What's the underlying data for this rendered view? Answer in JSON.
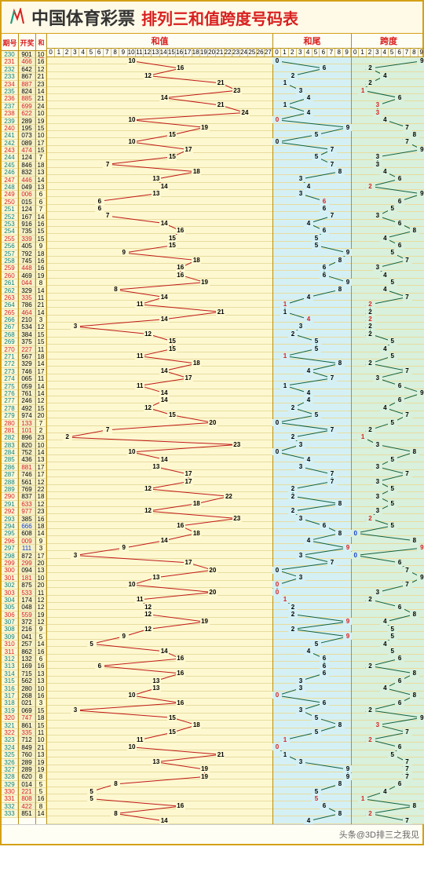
{
  "header": {
    "title": "中国体育彩票",
    "subtitle": "排列三和值跨度号码表"
  },
  "cols": {
    "issue": "期号",
    "num": "开奖号",
    "sum": "和值",
    "hz": "和值",
    "hw": "和尾",
    "kd": "跨度"
  },
  "hz_scale": 28,
  "hw_scale": 10,
  "kd_scale": 10,
  "style": {
    "line_hz": "#c01818",
    "line_hw": "#106040",
    "line_kd": "#106040",
    "red": "#d82020",
    "teal": "#0a8080",
    "blue": "#1040d0",
    "black": "#222",
    "bg_hz": "#fdf8d0",
    "bg_hw": "#d4f0f4",
    "bg_kd": "#d8f0dc",
    "row_h": 9.4
  },
  "rows": [
    {
      "i": "230",
      "n": "901",
      "s": 10,
      "hw": 0,
      "kd": 9,
      "ic": "t"
    },
    {
      "i": "231",
      "n": "466",
      "s": 16,
      "hw": 6,
      "kd": 2,
      "ic": "r",
      "nc": "r"
    },
    {
      "i": "232",
      "n": "642",
      "s": 12,
      "hw": 2,
      "kd": 4,
      "ic": "t"
    },
    {
      "i": "233",
      "n": "867",
      "s": 21,
      "hw": 1,
      "kd": 2,
      "ic": "t"
    },
    {
      "i": "234",
      "n": "887",
      "s": 23,
      "hw": 3,
      "kd": 1,
      "ic": "r",
      "nc": "r",
      "kc": "r"
    },
    {
      "i": "235",
      "n": "824",
      "s": 14,
      "hw": 4,
      "kd": 6,
      "ic": "t"
    },
    {
      "i": "236",
      "n": "885",
      "s": 21,
      "hw": 1,
      "kd": 3,
      "ic": "r",
      "nc": "r",
      "kc": "r"
    },
    {
      "i": "237",
      "n": "699",
      "s": 24,
      "hw": 4,
      "kd": 3,
      "ic": "t",
      "nc": "r",
      "kc": "r"
    },
    {
      "i": "238",
      "n": "622",
      "s": 10,
      "hw": 0,
      "kd": 4,
      "ic": "r",
      "nc": "r",
      "hwc": "r"
    },
    {
      "i": "239",
      "n": "289",
      "s": 19,
      "hw": 9,
      "kd": 7,
      "ic": "t"
    },
    {
      "i": "240",
      "n": "195",
      "s": 15,
      "hw": 5,
      "kd": 8,
      "ic": "r"
    },
    {
      "i": "241",
      "n": "073",
      "s": 10,
      "hw": 0,
      "kd": 7,
      "ic": "t"
    },
    {
      "i": "242",
      "n": "089",
      "s": 17,
      "hw": 7,
      "kd": 9,
      "ic": "t"
    },
    {
      "i": "243",
      "n": "474",
      "s": 15,
      "hw": 5,
      "kd": 3,
      "ic": "r",
      "nc": "r"
    },
    {
      "i": "244",
      "n": "124",
      "s": 7,
      "hw": 7,
      "kd": 3,
      "ic": "t"
    },
    {
      "i": "245",
      "n": "846",
      "s": 18,
      "hw": 8,
      "kd": 4,
      "ic": "t"
    },
    {
      "i": "246",
      "n": "832",
      "s": 13,
      "hw": 3,
      "kd": 6,
      "ic": "t"
    },
    {
      "i": "247",
      "n": "446",
      "s": 14,
      "hw": 4,
      "kd": 2,
      "ic": "r",
      "nc": "r",
      "kc": "r"
    },
    {
      "i": "248",
      "n": "049",
      "s": 13,
      "hw": 3,
      "kd": 9,
      "ic": "t"
    },
    {
      "i": "249",
      "n": "006",
      "s": 6,
      "hw": 6,
      "kd": 6,
      "ic": "r",
      "nc": "r",
      "hwc": "r"
    },
    {
      "i": "250",
      "n": "015",
      "s": 6,
      "hw": 6,
      "kd": 5,
      "ic": "r"
    },
    {
      "i": "251",
      "n": "124",
      "s": 7,
      "hw": 7,
      "kd": 3,
      "ic": "t"
    },
    {
      "i": "252",
      "n": "167",
      "s": 14,
      "hw": 4,
      "kd": 6,
      "ic": "t"
    },
    {
      "i": "253",
      "n": "916",
      "s": 16,
      "hw": 6,
      "kd": 8,
      "ic": "t"
    },
    {
      "i": "254",
      "n": "735",
      "s": 15,
      "hw": 5,
      "kd": 4,
      "ic": "t"
    },
    {
      "i": "255",
      "n": "339",
      "s": 15,
      "hw": 5,
      "kd": 6,
      "ic": "r",
      "nc": "r"
    },
    {
      "i": "256",
      "n": "405",
      "s": 9,
      "hw": 9,
      "kd": 5,
      "ic": "t"
    },
    {
      "i": "257",
      "n": "792",
      "s": 18,
      "hw": 8,
      "kd": 7,
      "ic": "t"
    },
    {
      "i": "258",
      "n": "745",
      "s": 16,
      "hw": 6,
      "kd": 3,
      "ic": "t"
    },
    {
      "i": "259",
      "n": "448",
      "s": 16,
      "hw": 6,
      "kd": 4,
      "ic": "r",
      "nc": "r"
    },
    {
      "i": "260",
      "n": "469",
      "s": 19,
      "hw": 9,
      "kd": 5,
      "ic": "r"
    },
    {
      "i": "261",
      "n": "044",
      "s": 8,
      "hw": 8,
      "kd": 4,
      "ic": "t",
      "nc": "r"
    },
    {
      "i": "262",
      "n": "329",
      "s": 14,
      "hw": 4,
      "kd": 7,
      "ic": "t"
    },
    {
      "i": "263",
      "n": "335",
      "s": 11,
      "hw": 1,
      "kd": 2,
      "ic": "r",
      "nc": "r",
      "hwc": "r",
      "kc": "r"
    },
    {
      "i": "264",
      "n": "786",
      "s": 21,
      "hw": 1,
      "kd": 2,
      "ic": "t"
    },
    {
      "i": "265",
      "n": "464",
      "s": 14,
      "hw": 4,
      "kd": 2,
      "ic": "r",
      "nc": "r",
      "hwc": "r",
      "kc": "r"
    },
    {
      "i": "266",
      "n": "210",
      "s": 3,
      "hw": 3,
      "kd": 2,
      "ic": "t"
    },
    {
      "i": "267",
      "n": "534",
      "s": 12,
      "hw": 2,
      "kd": 2,
      "ic": "t"
    },
    {
      "i": "268",
      "n": "384",
      "s": 15,
      "hw": 5,
      "kd": 5,
      "ic": "t"
    },
    {
      "i": "269",
      "n": "375",
      "s": 15,
      "hw": 5,
      "kd": 4,
      "ic": "t"
    },
    {
      "i": "270",
      "n": "227",
      "s": 11,
      "hw": 1,
      "kd": 5,
      "ic": "r",
      "nc": "r",
      "hwc": "r"
    },
    {
      "i": "271",
      "n": "567",
      "s": 18,
      "hw": 8,
      "kd": 2,
      "ic": "t"
    },
    {
      "i": "272",
      "n": "329",
      "s": 14,
      "hw": 4,
      "kd": 7,
      "ic": "t"
    },
    {
      "i": "273",
      "n": "746",
      "s": 17,
      "hw": 7,
      "kd": 3,
      "ic": "t"
    },
    {
      "i": "274",
      "n": "065",
      "s": 11,
      "hw": 1,
      "kd": 6,
      "ic": "t"
    },
    {
      "i": "275",
      "n": "059",
      "s": 14,
      "hw": 4,
      "kd": 9,
      "ic": "t"
    },
    {
      "i": "276",
      "n": "761",
      "s": 14,
      "hw": 4,
      "kd": 6,
      "ic": "t"
    },
    {
      "i": "277",
      "n": "246",
      "s": 12,
      "hw": 2,
      "kd": 4,
      "ic": "t"
    },
    {
      "i": "278",
      "n": "492",
      "s": 15,
      "hw": 5,
      "kd": 7,
      "ic": "t"
    },
    {
      "i": "279",
      "n": "974",
      "s": 20,
      "hw": 0,
      "kd": 5,
      "ic": "t"
    },
    {
      "i": "280",
      "n": "133",
      "s": 7,
      "hw": 7,
      "kd": 2,
      "ic": "r",
      "nc": "r"
    },
    {
      "i": "281",
      "n": "101",
      "s": 2,
      "hw": 2,
      "kd": 1,
      "ic": "r",
      "nc": "r",
      "kc": "r"
    },
    {
      "i": "282",
      "n": "896",
      "s": 23,
      "hw": 3,
      "kd": 3,
      "ic": "t"
    },
    {
      "i": "283",
      "n": "820",
      "s": 10,
      "hw": 0,
      "kd": 8,
      "ic": "t"
    },
    {
      "i": "284",
      "n": "752",
      "s": 14,
      "hw": 4,
      "kd": 5,
      "ic": "t"
    },
    {
      "i": "285",
      "n": "436",
      "s": 13,
      "hw": 3,
      "kd": 3,
      "ic": "t"
    },
    {
      "i": "286",
      "n": "881",
      "s": 17,
      "hw": 7,
      "kd": 7,
      "ic": "t",
      "nc": "r"
    },
    {
      "i": "287",
      "n": "746",
      "s": 17,
      "hw": 7,
      "kd": 3,
      "ic": "t"
    },
    {
      "i": "288",
      "n": "561",
      "s": 12,
      "hw": 2,
      "kd": 5,
      "ic": "t"
    },
    {
      "i": "289",
      "n": "769",
      "s": 22,
      "hw": 2,
      "kd": 3,
      "ic": "t"
    },
    {
      "i": "290",
      "n": "837",
      "s": 18,
      "hw": 8,
      "kd": 5,
      "ic": "r"
    },
    {
      "i": "291",
      "n": "633",
      "s": 12,
      "hw": 2,
      "kd": 3,
      "ic": "t",
      "nc": "r"
    },
    {
      "i": "292",
      "n": "977",
      "s": 23,
      "hw": 3,
      "kd": 2,
      "ic": "r",
      "nc": "r",
      "kc": "r"
    },
    {
      "i": "293",
      "n": "385",
      "s": 16,
      "hw": 6,
      "kd": 5,
      "ic": "t"
    },
    {
      "i": "294",
      "n": "666",
      "s": 18,
      "hw": 8,
      "kd": 0,
      "ic": "t",
      "nc": "b",
      "kc": "b"
    },
    {
      "i": "295",
      "n": "608",
      "s": 14,
      "hw": 4,
      "kd": 8,
      "ic": "t"
    },
    {
      "i": "296",
      "n": "009",
      "s": 9,
      "hw": 9,
      "kd": 9,
      "ic": "r",
      "nc": "r",
      "hwc": "r",
      "kc": "r"
    },
    {
      "i": "297",
      "n": "111",
      "s": 3,
      "hw": 3,
      "kd": 0,
      "ic": "t",
      "nc": "b",
      "kc": "b"
    },
    {
      "i": "298",
      "n": "872",
      "s": 17,
      "hw": 7,
      "kd": 6,
      "ic": "t"
    },
    {
      "i": "299",
      "n": "299",
      "s": 20,
      "hw": 0,
      "kd": 7,
      "ic": "r",
      "nc": "r"
    },
    {
      "i": "300",
      "n": "094",
      "s": 13,
      "hw": 3,
      "kd": 9,
      "ic": "r"
    },
    {
      "i": "301",
      "n": "181",
      "s": 10,
      "hw": 0,
      "kd": 7,
      "ic": "r",
      "nc": "r",
      "hwc": "r"
    },
    {
      "i": "302",
      "n": "875",
      "s": 20,
      "hw": 0,
      "kd": 3,
      "ic": "t",
      "hwc": "r"
    },
    {
      "i": "303",
      "n": "533",
      "s": 11,
      "hw": 1,
      "kd": 2,
      "ic": "r",
      "nc": "r",
      "hwc": "r"
    },
    {
      "i": "304",
      "n": "174",
      "s": 12,
      "hw": 2,
      "kd": 6,
      "ic": "t"
    },
    {
      "i": "305",
      "n": "048",
      "s": 12,
      "hw": 2,
      "kd": 8,
      "ic": "t"
    },
    {
      "i": "306",
      "n": "559",
      "s": 19,
      "hw": 9,
      "kd": 4,
      "ic": "r",
      "nc": "r",
      "hwc": "r"
    },
    {
      "i": "307",
      "n": "372",
      "s": 12,
      "hw": 2,
      "kd": 5,
      "ic": "t"
    },
    {
      "i": "308",
      "n": "216",
      "s": 9,
      "hw": 9,
      "kd": 5,
      "ic": "t",
      "hwc": "r"
    },
    {
      "i": "309",
      "n": "041",
      "s": 5,
      "hw": 5,
      "kd": 4,
      "ic": "t"
    },
    {
      "i": "310",
      "n": "257",
      "s": 14,
      "hw": 4,
      "kd": 5,
      "ic": "r"
    },
    {
      "i": "311",
      "n": "862",
      "s": 16,
      "hw": 6,
      "kd": 6,
      "ic": "r"
    },
    {
      "i": "312",
      "n": "132",
      "s": 6,
      "hw": 6,
      "kd": 2,
      "ic": "t"
    },
    {
      "i": "313",
      "n": "169",
      "s": 16,
      "hw": 6,
      "kd": 8,
      "ic": "t"
    },
    {
      "i": "314",
      "n": "715",
      "s": 13,
      "hw": 3,
      "kd": 6,
      "ic": "t"
    },
    {
      "i": "315",
      "n": "562",
      "s": 13,
      "hw": 3,
      "kd": 4,
      "ic": "t"
    },
    {
      "i": "316",
      "n": "280",
      "s": 10,
      "hw": 0,
      "kd": 8,
      "ic": "t",
      "hwc": "r"
    },
    {
      "i": "317",
      "n": "268",
      "s": 16,
      "hw": 6,
      "kd": 6,
      "ic": "t"
    },
    {
      "i": "318",
      "n": "021",
      "s": 3,
      "hw": 3,
      "kd": 2,
      "ic": "t"
    },
    {
      "i": "319",
      "n": "069",
      "s": 15,
      "hw": 5,
      "kd": 9,
      "ic": "t"
    },
    {
      "i": "320",
      "n": "747",
      "s": 18,
      "hw": 8,
      "kd": 3,
      "ic": "r",
      "nc": "r",
      "kc": "r"
    },
    {
      "i": "321",
      "n": "861",
      "s": 15,
      "hw": 5,
      "kd": 7,
      "ic": "t"
    },
    {
      "i": "322",
      "n": "335",
      "s": 11,
      "hw": 1,
      "kd": 2,
      "ic": "r",
      "nc": "r",
      "hwc": "r",
      "kc": "r"
    },
    {
      "i": "323",
      "n": "712",
      "s": 10,
      "hw": 0,
      "kd": 6,
      "ic": "t",
      "hwc": "r"
    },
    {
      "i": "324",
      "n": "849",
      "s": 21,
      "hw": 1,
      "kd": 5,
      "ic": "t"
    },
    {
      "i": "325",
      "n": "760",
      "s": 13,
      "hw": 3,
      "kd": 7,
      "ic": "t"
    },
    {
      "i": "326",
      "n": "289",
      "s": 19,
      "hw": 9,
      "kd": 7,
      "ic": "t"
    },
    {
      "i": "327",
      "n": "289",
      "s": 19,
      "hw": 9,
      "kd": 7,
      "ic": "t"
    },
    {
      "i": "328",
      "n": "620",
      "s": 8,
      "hw": 8,
      "kd": 6,
      "ic": "t"
    },
    {
      "i": "329",
      "n": "014",
      "s": 5,
      "hw": 5,
      "kd": 4,
      "ic": "t"
    },
    {
      "i": "330",
      "n": "221",
      "s": 5,
      "hw": 5,
      "kd": 1,
      "ic": "r",
      "nc": "r",
      "hwc": "r",
      "kc": "r"
    },
    {
      "i": "331",
      "n": "808",
      "s": 16,
      "hw": 6,
      "kd": 8,
      "ic": "r",
      "nc": "r"
    },
    {
      "i": "332",
      "n": "422",
      "s": 8,
      "hw": 8,
      "kd": 2,
      "ic": "t",
      "nc": "r",
      "kc": "r"
    },
    {
      "i": "333",
      "n": "851",
      "s": 14,
      "hw": 4,
      "kd": 7,
      "ic": "t"
    }
  ],
  "footer": "头条@3D排三之我见"
}
